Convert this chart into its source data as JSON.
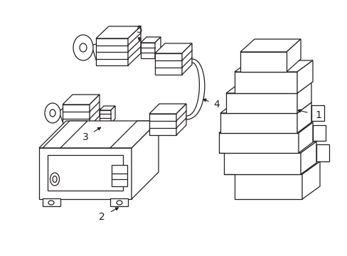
{
  "background_color": "#ffffff",
  "line_color": "#231f20",
  "line_width": 0.9,
  "label_fontsize": 10,
  "figsize": [
    4.89,
    3.6
  ],
  "dpi": 100,
  "xlim": [
    0,
    489
  ],
  "ylim": [
    0,
    360
  ]
}
